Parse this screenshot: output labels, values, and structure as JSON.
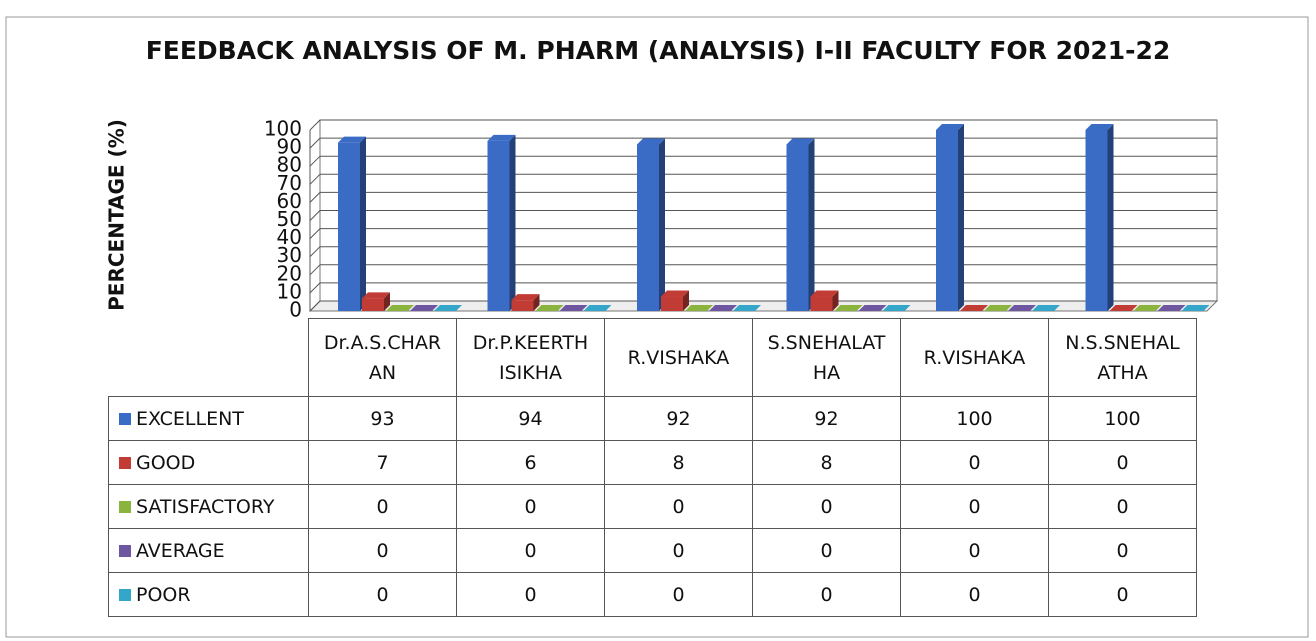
{
  "chart_data": {
    "type": "bar3d",
    "title": "FEEDBACK ANALYSIS OF M. PHARM (ANALYSIS) I-II FACULTY FOR 2021-22",
    "y_label": "PERCENTAGE (%)",
    "categories": [
      "Dr.A.S.CHARAN",
      "Dr.P.KEERTHISIKHA",
      "R.VISHAKA",
      "S.SNEHALATHA",
      "R.VISHAKA",
      "N.S.SNEHALATHA"
    ],
    "series": [
      {
        "name": "EXCELLENT",
        "color": "#3a6cc6",
        "values": [
          93,
          94,
          92,
          92,
          100,
          100
        ]
      },
      {
        "name": "GOOD",
        "color": "#c23c36",
        "values": [
          7,
          6,
          8,
          8,
          0,
          0
        ]
      },
      {
        "name": "SATISFACTORY",
        "color": "#8ab43e",
        "values": [
          0,
          0,
          0,
          0,
          0,
          0
        ]
      },
      {
        "name": "AVERAGE",
        "color": "#6e56a0",
        "values": [
          0,
          0,
          0,
          0,
          0,
          0
        ]
      },
      {
        "name": "POOR",
        "color": "#33a6c9",
        "values": [
          0,
          0,
          0,
          0,
          0,
          0
        ]
      }
    ],
    "ylim": [
      0,
      100
    ],
    "yticks": [
      0,
      10,
      20,
      30,
      40,
      50,
      60,
      70,
      80,
      90,
      100
    ],
    "grid": true
  }
}
